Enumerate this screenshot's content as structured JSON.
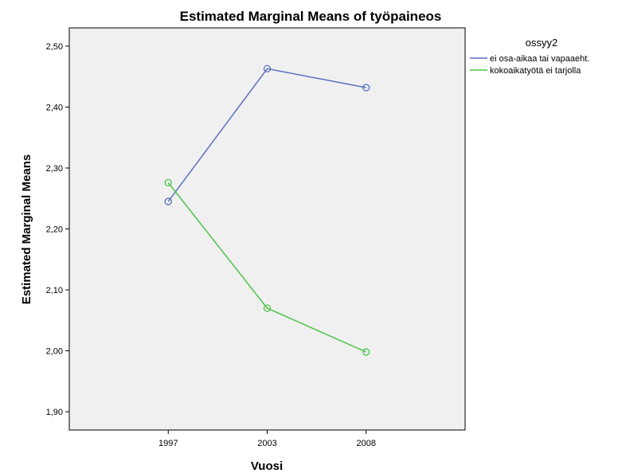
{
  "chart_data": {
    "type": "line",
    "title": "Estimated Marginal Means of työpaineos",
    "xlabel": "Vuosi",
    "ylabel": "Estimated Marginal Means",
    "categories": [
      "1997",
      "2003",
      "2008"
    ],
    "ylim": [
      1.87,
      2.53
    ],
    "yticks": [
      1.9,
      2.0,
      2.1,
      2.2,
      2.3,
      2.4,
      2.5
    ],
    "ytick_labels": [
      "1,90",
      "2,00",
      "2,10",
      "2,20",
      "2,30",
      "2,40",
      "2,50"
    ],
    "grid": false,
    "legend": {
      "title": "ossyy2",
      "position": "right"
    },
    "series": [
      {
        "name": "ei osa-aikaa tai vapaaeht.",
        "color": "#5b6fbf",
        "values": [
          2.245,
          2.463,
          2.432
        ]
      },
      {
        "name": "kokoaikatyötä ei tarjolla",
        "color": "#4cc44c",
        "values": [
          2.276,
          2.07,
          1.998
        ]
      }
    ]
  }
}
